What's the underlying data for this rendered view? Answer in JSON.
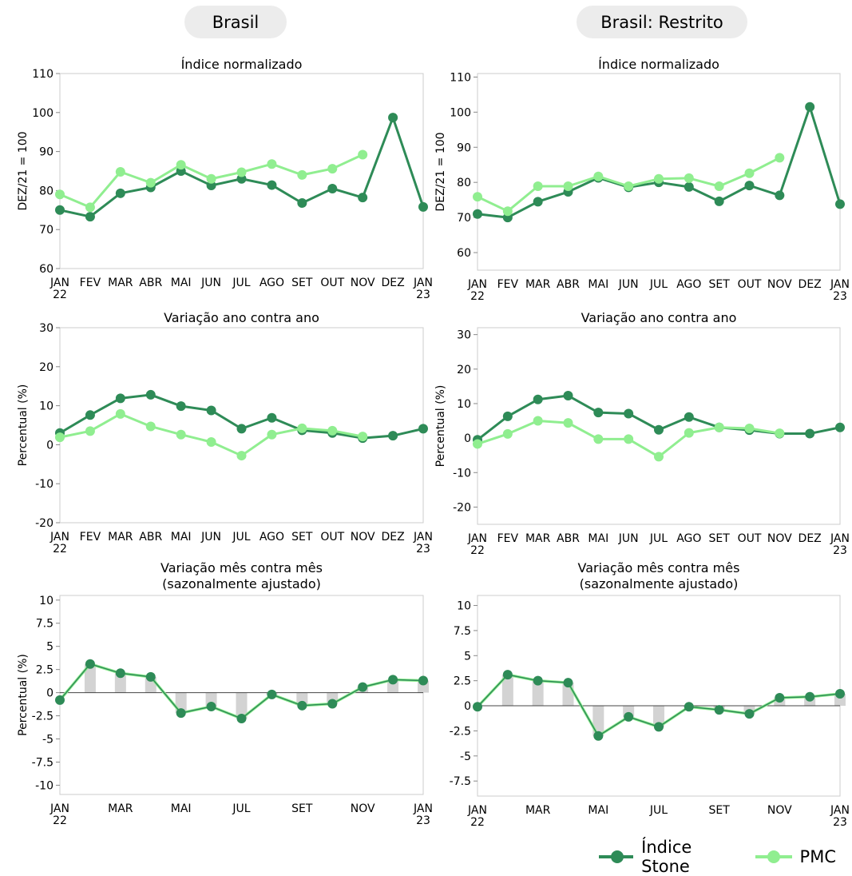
{
  "colors": {
    "stone": "#2e8b57",
    "pmc": "#90ee90",
    "bar": "#d3d3d3",
    "axis": "#cccccc",
    "zero": "#444444"
  },
  "header": {
    "left_title": "Brasil",
    "right_title": "Brasil: Restrito"
  },
  "legend": {
    "stone_label": "Índice Stone",
    "pmc_label": "PMC"
  },
  "chart_data": [
    {
      "id": "brasil-indice",
      "type": "line",
      "title": "Índice normalizado",
      "ylabel": "DEZ/21 = 100",
      "x_labels": [
        "JAN\n22",
        "FEV",
        "MAR",
        "ABR",
        "MAI",
        "JUN",
        "JUL",
        "AGO",
        "SET",
        "OUT",
        "NOV",
        "DEZ",
        "JAN\n23"
      ],
      "ylim": [
        60,
        110
      ],
      "yticks": [
        60,
        70,
        80,
        90,
        100,
        110
      ],
      "series": [
        {
          "name": "Índice Stone",
          "values": [
            75,
            73.3,
            79.3,
            80.8,
            85,
            81.3,
            83,
            81.4,
            76.8,
            80.5,
            78.2,
            98.7,
            75.8
          ]
        },
        {
          "name": "PMC",
          "values": [
            79,
            75.7,
            84.8,
            82,
            86.6,
            83,
            84.7,
            86.8,
            84,
            85.6,
            89.2,
            null,
            null
          ]
        }
      ]
    },
    {
      "id": "restrito-indice",
      "type": "line",
      "title": "Índice normalizado",
      "ylabel": "DEZ/21 = 100",
      "x_labels": [
        "JAN\n22",
        "FEV",
        "MAR",
        "ABR",
        "MAI",
        "JUN",
        "JUL",
        "AGO",
        "SET",
        "OUT",
        "NOV",
        "DEZ",
        "JAN\n23"
      ],
      "ylim": [
        55,
        111
      ],
      "yticks": [
        60,
        70,
        80,
        90,
        100,
        110
      ],
      "series": [
        {
          "name": "Índice Stone",
          "values": [
            71,
            70,
            74.5,
            77.3,
            81.3,
            78.6,
            80,
            78.7,
            74.6,
            79.1,
            76.3,
            101.5,
            73.8
          ]
        },
        {
          "name": "PMC",
          "values": [
            75.9,
            71.8,
            78.9,
            78.9,
            81.7,
            78.9,
            81,
            81.2,
            78.9,
            82.6,
            87,
            null,
            null
          ]
        }
      ]
    },
    {
      "id": "brasil-yoy",
      "type": "line",
      "title": "Variação ano contra ano",
      "ylabel": "Percentual (%)",
      "x_labels": [
        "JAN\n22",
        "FEV",
        "MAR",
        "ABR",
        "MAI",
        "JUN",
        "JUL",
        "AGO",
        "SET",
        "OUT",
        "NOV",
        "DEZ",
        "JAN\n23"
      ],
      "ylim": [
        -20,
        30
      ],
      "yticks": [
        -20,
        -10,
        0,
        10,
        20,
        30
      ],
      "series": [
        {
          "name": "Índice Stone",
          "values": [
            3,
            7.6,
            11.9,
            12.8,
            9.9,
            8.8,
            4.1,
            6.9,
            3.7,
            3,
            1.7,
            2.3,
            4.1
          ]
        },
        {
          "name": "PMC",
          "values": [
            1.9,
            3.5,
            7.9,
            4.7,
            2.6,
            0.7,
            -2.8,
            2.6,
            4.2,
            3.6,
            2.1,
            null,
            null
          ]
        }
      ]
    },
    {
      "id": "restrito-yoy",
      "type": "line",
      "title": "Variação ano contra ano",
      "ylabel": "Percentual (%)",
      "x_labels": [
        "JAN\n22",
        "FEV",
        "MAR",
        "ABR",
        "MAI",
        "JUN",
        "JUL",
        "AGO",
        "SET",
        "OUT",
        "NOV",
        "DEZ",
        "JAN\n23"
      ],
      "ylim": [
        -25,
        32
      ],
      "yticks": [
        -20,
        -10,
        0,
        10,
        20,
        30
      ],
      "series": [
        {
          "name": "Índice Stone",
          "values": [
            -0.5,
            6.3,
            11.2,
            12.3,
            7.4,
            7.1,
            2.4,
            6.1,
            3.1,
            2.3,
            1.3,
            1.3,
            3.1
          ]
        },
        {
          "name": "PMC",
          "values": [
            -1.7,
            1.2,
            5,
            4.4,
            -0.3,
            -0.3,
            -5.4,
            1.5,
            3.1,
            2.8,
            1.4,
            null,
            null
          ]
        }
      ]
    },
    {
      "id": "brasil-mom",
      "type": "line",
      "title": "Variação mês contra mês\n(sazonalmente ajustado)",
      "ylabel": "Percentual (%)",
      "x_labels": [
        "JAN\n22",
        "",
        "MAR",
        "",
        "MAI",
        "",
        "JUL",
        "",
        "SET",
        "",
        "NOV",
        "",
        "JAN\n23"
      ],
      "ylim": [
        -11,
        10.5
      ],
      "yticks": [
        -10,
        -7.5,
        -5,
        -2.5,
        0,
        2.5,
        5,
        7.5,
        10
      ],
      "ytick_labels": [
        "-10",
        "-7.5",
        "-5",
        "-2.5",
        "0",
        "2.5",
        "5",
        "7.5",
        "10"
      ],
      "bars": [
        0,
        3.1,
        2.1,
        1.7,
        -2.2,
        -1.5,
        -2.8,
        -0.2,
        -1.4,
        -1.2,
        0.6,
        1.4,
        1.3
      ],
      "series": [
        {
          "name": "Índice Stone",
          "values": [
            -0.8,
            3.1,
            2.1,
            1.7,
            -2.2,
            -1.5,
            -2.8,
            -0.2,
            -1.4,
            -1.2,
            0.6,
            1.4,
            1.3
          ]
        },
        {
          "name": "PMC",
          "values": [
            -0.8,
            3.1,
            2.1,
            1.7,
            -2.2,
            -1.5,
            -2.8,
            -0.2,
            -1.4,
            -1.2,
            0.6,
            1.4,
            1.3
          ]
        }
      ]
    },
    {
      "id": "restrito-mom",
      "type": "line",
      "title": "Variação mês contra mês\n(sazonalmente ajustado)",
      "ylabel": "",
      "x_labels": [
        "JAN\n22",
        "",
        "MAR",
        "",
        "MAI",
        "",
        "JUL",
        "",
        "SET",
        "",
        "NOV",
        "",
        "JAN\n23"
      ],
      "ylim": [
        -9,
        11
      ],
      "yticks": [
        -7.5,
        -5,
        -2.5,
        0,
        2.5,
        5,
        7.5,
        10
      ],
      "ytick_labels": [
        "-7.5",
        "-5",
        "-2.5",
        "0",
        "2.5",
        "5",
        "7.5",
        "10"
      ],
      "bars": [
        0,
        3.1,
        2.5,
        2.3,
        -3,
        -1.1,
        -2.1,
        -0.1,
        -0.4,
        -0.8,
        0.8,
        0.9,
        1.2
      ],
      "series": [
        {
          "name": "Índice Stone",
          "values": [
            -0.1,
            3.1,
            2.5,
            2.3,
            -3,
            -1.1,
            -2.1,
            -0.1,
            -0.4,
            -0.8,
            0.8,
            0.9,
            1.2
          ]
        },
        {
          "name": "PMC",
          "values": [
            -0.1,
            3.1,
            2.5,
            2.3,
            -3,
            -1.1,
            -2.1,
            -0.1,
            -0.4,
            -0.8,
            0.8,
            0.9,
            1.2
          ]
        }
      ]
    }
  ]
}
